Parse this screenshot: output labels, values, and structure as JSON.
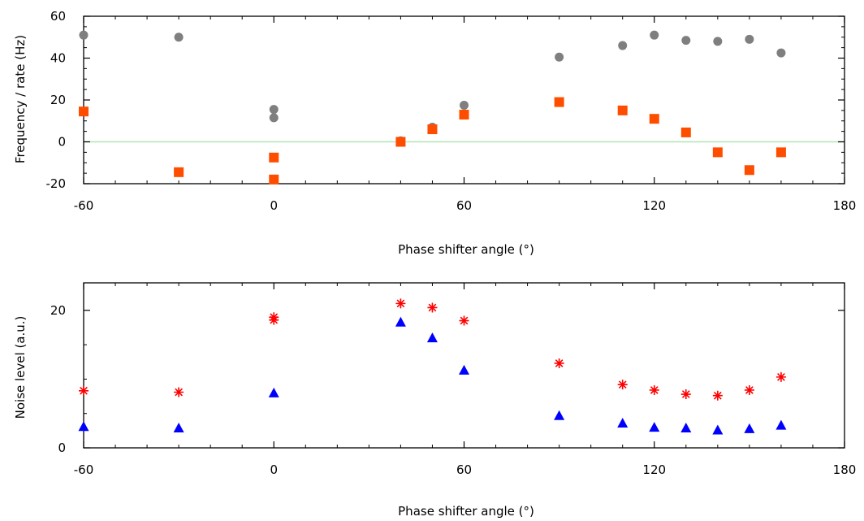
{
  "chart_data": [
    {
      "type": "scatter",
      "title": "",
      "xlabel": "Phase shifter angle (°)",
      "ylabel": "Frequency / rate (Hz)",
      "xlim": [
        -60,
        180
      ],
      "ylim": [
        -20,
        60
      ],
      "xticks": [
        "-60",
        "0",
        "60",
        "120",
        "180"
      ],
      "yticks": [
        "-20",
        "0",
        "20",
        "40",
        "60"
      ],
      "reference_line": {
        "y": 0,
        "color": "#b3e6b3"
      },
      "grid": false,
      "series": [
        {
          "marker": "circle",
          "color": "#7f7f7f",
          "x": [
            -60,
            -30,
            0,
            0,
            40,
            50,
            60,
            90,
            110,
            120,
            130,
            140,
            150,
            160
          ],
          "y": [
            51,
            50,
            11.5,
            15.5,
            0.5,
            7,
            17.5,
            40.5,
            46,
            51,
            48.5,
            48,
            49,
            42.5
          ]
        },
        {
          "marker": "square",
          "color": "#ff4d00",
          "x": [
            -60,
            -30,
            0,
            0,
            40,
            50,
            60,
            90,
            110,
            120,
            130,
            140,
            150,
            160
          ],
          "y": [
            14.5,
            -14.5,
            -7.5,
            -18,
            0,
            6,
            13,
            19,
            15,
            11,
            4.5,
            -5,
            -13.5,
            -5
          ]
        }
      ]
    },
    {
      "type": "scatter",
      "title": "",
      "xlabel": "Phase shifter angle (°)",
      "ylabel": "Noise level (a.u.)",
      "xlim": [
        -60,
        180
      ],
      "ylim": [
        0,
        24
      ],
      "xticks": [
        "-60",
        "0",
        "60",
        "120",
        "180"
      ],
      "yticks": [
        "0",
        "20"
      ],
      "grid": false,
      "series": [
        {
          "marker": "asterisk",
          "color": "#ff0000",
          "x": [
            -60,
            -30,
            0,
            0,
            40,
            50,
            60,
            90,
            110,
            120,
            130,
            140,
            150,
            160
          ],
          "y": [
            8.3,
            8.1,
            18.6,
            19,
            21,
            20.4,
            18.5,
            12.3,
            9.2,
            8.4,
            7.8,
            7.6,
            8.4,
            10.3
          ]
        },
        {
          "marker": "triangle",
          "color": "#0000ff",
          "x": [
            -60,
            -30,
            0,
            40,
            50,
            60,
            90,
            110,
            120,
            130,
            140,
            150,
            160
          ],
          "y": [
            3.1,
            2.9,
            8,
            18.3,
            16,
            11.3,
            4.7,
            3.6,
            3,
            2.9,
            2.6,
            2.8,
            3.3
          ]
        }
      ]
    }
  ]
}
